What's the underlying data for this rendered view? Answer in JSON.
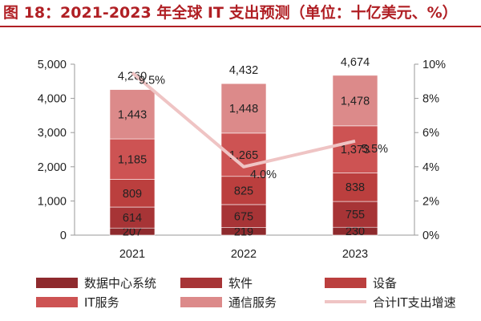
{
  "title": "图 18：2021-2023 年全球 IT 支出预测（单位：十亿美元、%）",
  "chart_data": {
    "type": "bar",
    "stacked": true,
    "categories": [
      "2021",
      "2022",
      "2023"
    ],
    "series": [
      {
        "name": "数据中心系统",
        "values": [
          207,
          219,
          230
        ],
        "color": "#8e2a2d"
      },
      {
        "name": "软件",
        "values": [
          614,
          675,
          755
        ],
        "color": "#a73436"
      },
      {
        "name": "设备",
        "values": [
          809,
          825,
          838
        ],
        "color": "#bb3f3e"
      },
      {
        "name": "IT服务",
        "values": [
          1185,
          1265,
          1373
        ],
        "color": "#cd5353"
      },
      {
        "name": "通信服务",
        "values": [
          1443,
          1448,
          1478
        ],
        "color": "#dc8a8a"
      }
    ],
    "totals": [
      4260,
      4432,
      4674
    ],
    "total_labels": [
      "4,260",
      "4,432",
      "4,674"
    ],
    "segment_labels": [
      [
        "207",
        "219",
        "230"
      ],
      [
        "614",
        "675",
        "755"
      ],
      [
        "809",
        "825",
        "838"
      ],
      [
        "1,185",
        "1,265",
        "1,373"
      ],
      [
        "1,443",
        "1,448",
        "1,478"
      ]
    ],
    "line_series": {
      "name": "合计IT支出增速",
      "values": [
        9.5,
        4.0,
        5.5
      ],
      "labels": [
        "9.5%",
        "4.0%",
        "5.5%"
      ],
      "color": "#efc4c4",
      "axis": "right"
    },
    "y_left": {
      "min": 0,
      "max": 5000,
      "ticks": [
        0,
        1000,
        2000,
        3000,
        4000,
        5000
      ],
      "tick_labels": [
        "0",
        "1,000",
        "2,000",
        "3,000",
        "4,000",
        "5,000"
      ]
    },
    "y_right": {
      "min": 0,
      "max": 10,
      "ticks": [
        0,
        2,
        4,
        6,
        8,
        10
      ],
      "tick_labels": [
        "0%",
        "2%",
        "4%",
        "6%",
        "8%",
        "10%"
      ]
    },
    "grid": false,
    "legend_position": "bottom"
  }
}
